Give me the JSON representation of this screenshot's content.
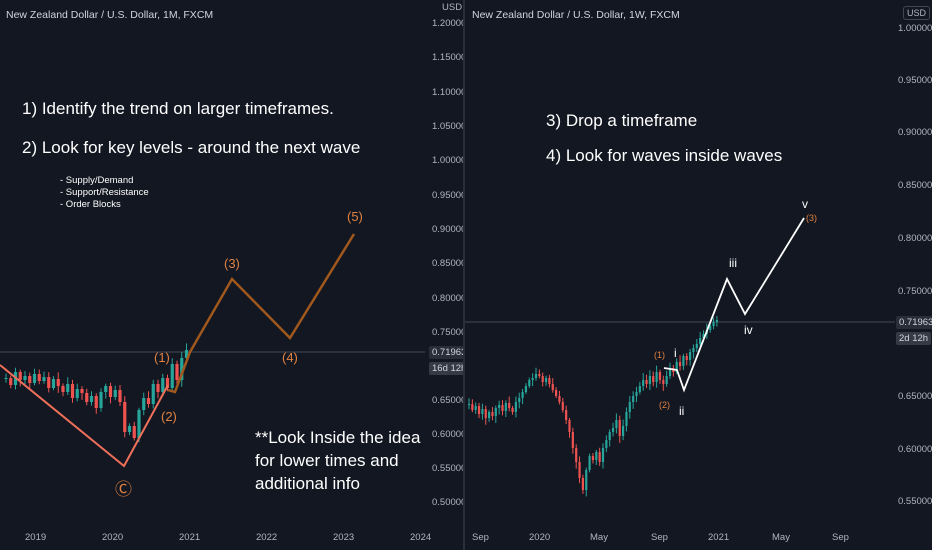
{
  "left": {
    "title": "New Zealand Dollar / U.S. Dollar, 1M, FXCM",
    "currency": "USD",
    "price_axis": [
      "1.20000",
      "1.15000",
      "1.10000",
      "1.05000",
      "1.00000",
      "0.95000",
      "0.90000",
      "0.85000",
      "0.80000",
      "0.75000",
      "0.65000",
      "0.60000",
      "0.55000",
      "0.50000"
    ],
    "time_axis": [
      "2019",
      "2020",
      "2021",
      "2022",
      "2023",
      "2024"
    ],
    "price_tag": "0.71963",
    "time_tag": "16d 12h",
    "notes": {
      "line1": "1) Identify the trend on larger timeframes.",
      "line2": "2) Look for key levels - around the next wave",
      "sub1": "- Supply/Demand",
      "sub2": "- Support/Resistance",
      "sub3": "- Order Blocks",
      "look1": "**Look Inside the idea",
      "look2": "for lower times and",
      "look3": "additional info"
    },
    "waves": {
      "w1": "(1)",
      "w2": "(2)",
      "w3": "(3)",
      "w4": "(4)",
      "w5": "(5)",
      "wc": "Ⓒ"
    }
  },
  "right": {
    "title": "New Zealand Dollar / U.S. Dollar, 1W, FXCM",
    "currency": "USD",
    "price_axis": [
      "1.00000",
      "0.95000",
      "0.90000",
      "0.85000",
      "0.80000",
      "0.75000",
      "0.65000",
      "0.60000",
      "0.55000"
    ],
    "time_axis": [
      "Sep",
      "2020",
      "May",
      "Sep",
      "2021",
      "May",
      "Sep"
    ],
    "price_tag": "0.71963",
    "time_tag": "2d 12h",
    "notes": {
      "line3": "3) Drop a timeframe",
      "line4": "4) Look for waves inside waves"
    },
    "waves": {
      "w1": "(1)",
      "w2": "(2)",
      "w3": "(3)",
      "i": "i",
      "ii": "ii",
      "iii": "iii",
      "iv": "iv",
      "v": "v"
    }
  },
  "colors": {
    "bg": "#131722",
    "up": "#26a69a",
    "down": "#ef5350",
    "orange": "#e0813f",
    "brown": "#a0581c",
    "salmon": "#f0705a",
    "white": "#ffffff"
  }
}
